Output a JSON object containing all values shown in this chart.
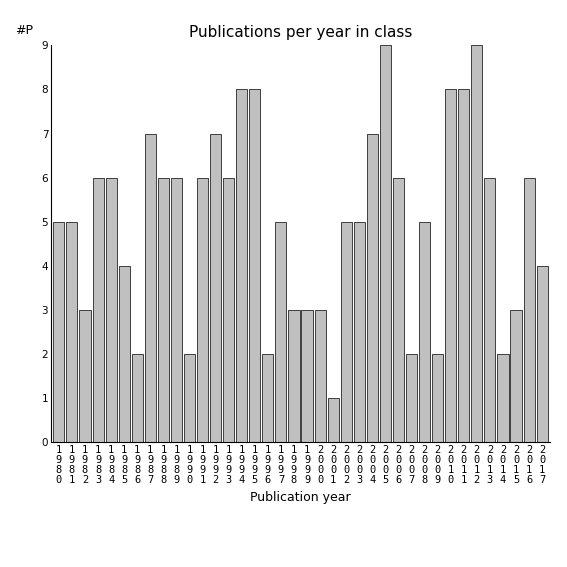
{
  "title": "Publications per year in class",
  "xlabel": "Publication year",
  "ylabel": "#P",
  "years": [
    1980,
    1981,
    1982,
    1983,
    1984,
    1985,
    1986,
    1987,
    1988,
    1989,
    1990,
    1991,
    1992,
    1993,
    1994,
    1995,
    1996,
    1997,
    1998,
    1999,
    2000,
    2001,
    2002,
    2003,
    2004,
    2005,
    2006,
    2007,
    2008,
    2009,
    2010,
    2011,
    2012,
    2013,
    2014,
    2015,
    2016,
    2017
  ],
  "values": [
    5,
    5,
    3,
    6,
    6,
    4,
    2,
    7,
    6,
    6,
    2,
    6,
    7,
    6,
    8,
    8,
    2,
    5,
    3,
    3,
    3,
    1,
    5,
    5,
    7,
    9,
    6,
    2,
    5,
    2,
    8,
    8,
    9,
    6,
    2,
    3,
    6,
    4
  ],
  "bar_color": "#c0c0c0",
  "bar_edgecolor": "#000000",
  "ylim": [
    0,
    9
  ],
  "yticks": [
    0,
    1,
    2,
    3,
    4,
    5,
    6,
    7,
    8,
    9
  ],
  "bg_color": "#ffffff",
  "title_fontsize": 11,
  "label_fontsize": 9,
  "tick_fontsize": 7.5
}
